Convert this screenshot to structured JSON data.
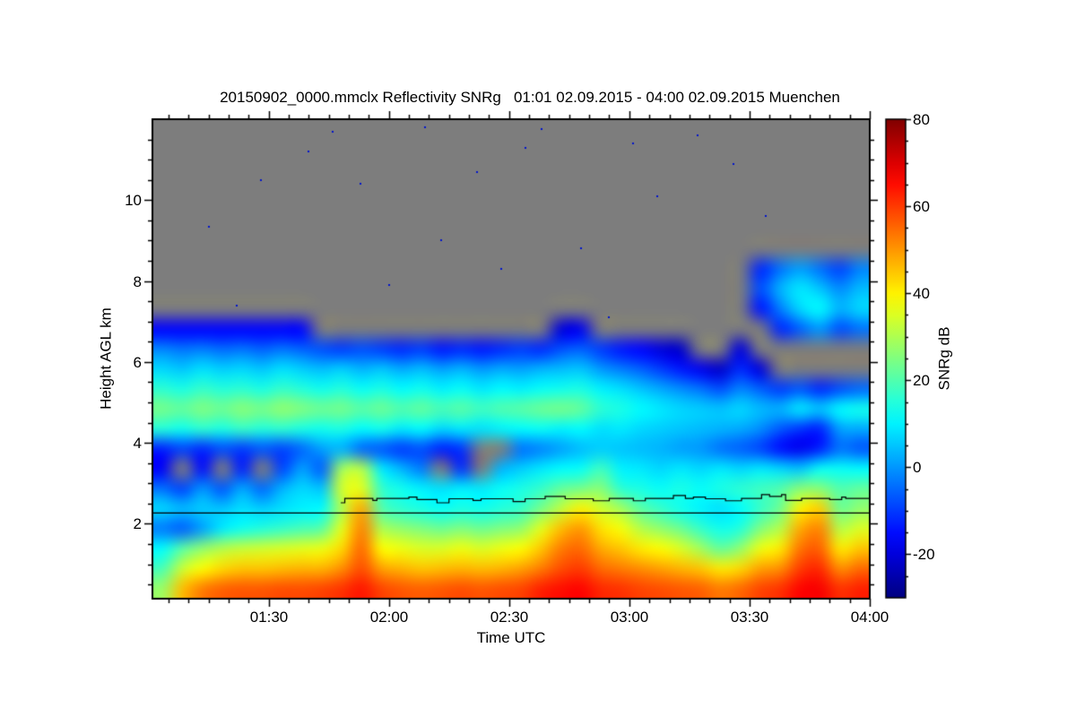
{
  "chart_data": {
    "type": "heatmap",
    "title": "20150902_0000.mmclx Reflectivity SNRg   01:01 02.09.2015 - 04:00 02.09.2015 Muenchen",
    "xlabel": "Time UTC",
    "ylabel": "Height AGL km",
    "colorbar_label": "SNRg dB",
    "colormap": "jet",
    "x_range_min": [
      61,
      240
    ],
    "x_ticks": [
      {
        "t": 90,
        "label": "01:30"
      },
      {
        "t": 120,
        "label": "02:00"
      },
      {
        "t": 150,
        "label": "02:30"
      },
      {
        "t": 180,
        "label": "03:00"
      },
      {
        "t": 210,
        "label": "03:30"
      },
      {
        "t": 240,
        "label": "04:00"
      }
    ],
    "x_minor_step_min": 5,
    "y_range_km": [
      0.15,
      12.0
    ],
    "y_ticks": [
      2,
      4,
      6,
      8,
      10
    ],
    "y_minor_step_km": 0.5,
    "value_range_db": [
      -30,
      80
    ],
    "cb_ticks": [
      80,
      60,
      40,
      20,
      0,
      -20
    ],
    "cb_minor_step_db": 5,
    "grid": {
      "cols": 36,
      "rows": 24,
      "row_top_km": 12.0,
      "row_bottom_km": 0.15,
      "values": [
        [
          null,
          null,
          null,
          null,
          null,
          null,
          null,
          null,
          null,
          null,
          null,
          null,
          null,
          null,
          null,
          null,
          null,
          null,
          null,
          null,
          null,
          null,
          null,
          null,
          null,
          null,
          null,
          null,
          null,
          null,
          null,
          null,
          null,
          null,
          null,
          null
        ],
        [
          null,
          null,
          null,
          null,
          null,
          null,
          null,
          null,
          null,
          null,
          null,
          null,
          null,
          null,
          null,
          null,
          null,
          null,
          null,
          null,
          null,
          null,
          null,
          null,
          null,
          null,
          null,
          null,
          null,
          null,
          null,
          null,
          null,
          null,
          null,
          null
        ],
        [
          null,
          null,
          null,
          null,
          null,
          null,
          null,
          null,
          null,
          null,
          null,
          null,
          null,
          null,
          null,
          null,
          null,
          null,
          null,
          null,
          null,
          null,
          null,
          null,
          null,
          null,
          null,
          null,
          null,
          null,
          null,
          null,
          null,
          null,
          null,
          null
        ],
        [
          null,
          null,
          null,
          null,
          null,
          null,
          null,
          null,
          null,
          null,
          null,
          null,
          null,
          null,
          null,
          null,
          null,
          null,
          null,
          null,
          null,
          null,
          null,
          null,
          null,
          null,
          null,
          null,
          null,
          null,
          null,
          null,
          null,
          null,
          null,
          null
        ],
        [
          null,
          null,
          null,
          null,
          null,
          null,
          null,
          null,
          null,
          null,
          null,
          null,
          null,
          null,
          null,
          null,
          null,
          null,
          null,
          null,
          null,
          null,
          null,
          null,
          null,
          null,
          null,
          null,
          null,
          null,
          null,
          null,
          null,
          null,
          null,
          null
        ],
        [
          null,
          null,
          null,
          null,
          null,
          null,
          null,
          null,
          null,
          null,
          null,
          null,
          null,
          null,
          null,
          null,
          null,
          null,
          null,
          null,
          null,
          null,
          null,
          null,
          null,
          null,
          null,
          null,
          null,
          null,
          null,
          null,
          null,
          null,
          null,
          null
        ],
        [
          null,
          null,
          null,
          null,
          null,
          null,
          null,
          null,
          null,
          null,
          null,
          null,
          null,
          null,
          null,
          null,
          null,
          null,
          null,
          null,
          null,
          null,
          null,
          null,
          null,
          null,
          null,
          null,
          null,
          null,
          null,
          null,
          null,
          null,
          null,
          null
        ],
        [
          null,
          null,
          null,
          null,
          null,
          null,
          null,
          null,
          null,
          null,
          null,
          null,
          null,
          null,
          null,
          null,
          null,
          null,
          null,
          null,
          null,
          null,
          null,
          null,
          null,
          null,
          null,
          null,
          null,
          null,
          -12,
          -4,
          1,
          -4,
          -9,
          -2
        ],
        [
          null,
          null,
          null,
          null,
          null,
          null,
          null,
          null,
          null,
          null,
          null,
          null,
          null,
          null,
          null,
          null,
          null,
          null,
          null,
          null,
          null,
          null,
          null,
          null,
          null,
          null,
          null,
          null,
          null,
          null,
          -8,
          3,
          9,
          5,
          -1,
          4
        ],
        [
          null,
          null,
          null,
          null,
          null,
          null,
          null,
          null,
          null,
          null,
          null,
          null,
          null,
          null,
          null,
          null,
          null,
          null,
          null,
          null,
          null,
          null,
          null,
          null,
          null,
          null,
          null,
          null,
          null,
          null,
          -14,
          -3,
          7,
          11,
          3,
          7
        ],
        [
          -16,
          -16,
          -16,
          -16,
          -16,
          -16,
          -16,
          -16,
          null,
          null,
          null,
          null,
          null,
          null,
          null,
          null,
          null,
          null,
          null,
          null,
          -20,
          -18,
          null,
          null,
          null,
          null,
          null,
          null,
          null,
          null,
          null,
          -12,
          -6,
          0,
          -8,
          -4
        ],
        [
          -2,
          -4,
          -3,
          -5,
          -4,
          -6,
          -4,
          -6,
          -8,
          -10,
          -8,
          -10,
          -12,
          -10,
          -14,
          -12,
          -14,
          -12,
          -10,
          -12,
          -8,
          -6,
          -10,
          -14,
          -16,
          -20,
          -22,
          null,
          null,
          -20,
          null,
          null,
          null,
          null,
          null,
          null
        ],
        [
          7,
          5,
          8,
          6,
          7,
          5,
          8,
          6,
          4,
          6,
          3,
          5,
          2,
          4,
          1,
          3,
          0,
          2,
          1,
          3,
          4,
          5,
          0,
          -3,
          -6,
          -10,
          -14,
          -18,
          -22,
          -12,
          -20,
          null,
          null,
          null,
          null,
          null
        ],
        [
          16,
          14,
          17,
          15,
          16,
          14,
          17,
          15,
          13,
          15,
          12,
          14,
          11,
          13,
          10,
          12,
          9,
          11,
          10,
          12,
          13,
          14,
          10,
          8,
          5,
          2,
          -1,
          -4,
          -8,
          -2,
          -6,
          -10,
          -7,
          -12,
          -8,
          -5
        ],
        [
          24,
          22,
          25,
          23,
          26,
          24,
          27,
          25,
          23,
          24,
          21,
          23,
          20,
          22,
          19,
          21,
          18,
          20,
          21,
          23,
          24,
          22,
          16,
          14,
          11,
          9,
          7,
          6,
          5,
          7,
          4,
          3,
          9,
          5,
          11,
          13
        ],
        [
          15,
          13,
          16,
          14,
          17,
          15,
          16,
          14,
          13,
          14,
          11,
          13,
          9,
          11,
          7,
          9,
          8,
          10,
          11,
          12,
          10,
          11,
          8,
          9,
          7,
          6,
          5,
          4,
          3,
          2,
          -1,
          -7,
          -11,
          -13,
          1,
          2
        ],
        [
          -13,
          -9,
          -12,
          -8,
          -10,
          -7,
          -9,
          -5,
          1,
          3,
          -5,
          -7,
          -10,
          -8,
          -13,
          -11,
          null,
          null,
          -4,
          -2,
          1,
          4,
          6,
          5,
          4,
          3,
          1,
          0,
          -4,
          -6,
          -9,
          -15,
          -18,
          -13,
          -4,
          -7
        ],
        [
          -17,
          null,
          -15,
          null,
          -13,
          null,
          -9,
          1,
          -6,
          29,
          31,
          9,
          3,
          -3,
          null,
          -11,
          null,
          3,
          6,
          9,
          11,
          12,
          18,
          10,
          9,
          7,
          9,
          7,
          9,
          7,
          9,
          7,
          5,
          12,
          12,
          11
        ],
        [
          -4,
          -9,
          0,
          -7,
          2,
          -5,
          3,
          7,
          5,
          34,
          36,
          17,
          13,
          10,
          8,
          10,
          9,
          12,
          14,
          17,
          22,
          24,
          26,
          16,
          14,
          12,
          14,
          12,
          14,
          16,
          18,
          20,
          26,
          26,
          20,
          22
        ],
        [
          7,
          4,
          6,
          5,
          8,
          6,
          8,
          10,
          11,
          30,
          48,
          20,
          16,
          14,
          12,
          14,
          13,
          15,
          17,
          24,
          32,
          40,
          34,
          29,
          21,
          17,
          13,
          10,
          8,
          11,
          17,
          23,
          40,
          44,
          23,
          27
        ],
        [
          -3,
          -6,
          1,
          9,
          13,
          15,
          17,
          19,
          21,
          36,
          52,
          30,
          27,
          25,
          23,
          25,
          23,
          25,
          27,
          36,
          46,
          50,
          42,
          38,
          31,
          27,
          23,
          17,
          13,
          15,
          25,
          31,
          48,
          52,
          31,
          35
        ],
        [
          11,
          21,
          27,
          31,
          33,
          34,
          35,
          36,
          37,
          43,
          55,
          39,
          37,
          35,
          35,
          37,
          35,
          37,
          39,
          45,
          53,
          55,
          48,
          45,
          41,
          39,
          35,
          29,
          22,
          27,
          37,
          41,
          54,
          56,
          41,
          45
        ],
        [
          19,
          33,
          39,
          43,
          45,
          45,
          46,
          47,
          47,
          51,
          58,
          49,
          47,
          45,
          46,
          47,
          46,
          47,
          49,
          53,
          58,
          60,
          55,
          53,
          51,
          49,
          47,
          45,
          41,
          43,
          49,
          51,
          60,
          62,
          51,
          55
        ],
        [
          28,
          46,
          53,
          56,
          57,
          57,
          58,
          58,
          59,
          61,
          64,
          59,
          57,
          56,
          57,
          58,
          57,
          58,
          59,
          63,
          65,
          66,
          62,
          61,
          59,
          58,
          57,
          56,
          53,
          55,
          59,
          61,
          66,
          67,
          61,
          63
        ]
      ]
    },
    "specks": [
      [
        75,
        9.35
      ],
      [
        82,
        7.4
      ],
      [
        88,
        10.5
      ],
      [
        100,
        11.2
      ],
      [
        106,
        11.7
      ],
      [
        113,
        10.4
      ],
      [
        120,
        7.9
      ],
      [
        129,
        11.8
      ],
      [
        133,
        9.0
      ],
      [
        142,
        10.7
      ],
      [
        148,
        8.3
      ],
      [
        154,
        11.3
      ],
      [
        158,
        11.75
      ],
      [
        168,
        8.8
      ],
      [
        175,
        7.1
      ],
      [
        181,
        11.4
      ],
      [
        187,
        10.1
      ],
      [
        197,
        11.6
      ],
      [
        206,
        10.9
      ],
      [
        214,
        9.6
      ]
    ],
    "boundary_lines": {
      "flat_line_km": 2.28,
      "stepped_line": [
        [
          108,
          2.52
        ],
        [
          109,
          2.63
        ],
        [
          115,
          2.63
        ],
        [
          116,
          2.58
        ],
        [
          117,
          2.63
        ],
        [
          124,
          2.63
        ],
        [
          125,
          2.66
        ],
        [
          127,
          2.6
        ],
        [
          131,
          2.6
        ],
        [
          132,
          2.52
        ],
        [
          134,
          2.52
        ],
        [
          135,
          2.62
        ],
        [
          140,
          2.62
        ],
        [
          141,
          2.58
        ],
        [
          143,
          2.62
        ],
        [
          150,
          2.62
        ],
        [
          151,
          2.55
        ],
        [
          153,
          2.55
        ],
        [
          154,
          2.62
        ],
        [
          158,
          2.62
        ],
        [
          159,
          2.68
        ],
        [
          163,
          2.68
        ],
        [
          164,
          2.62
        ],
        [
          170,
          2.62
        ],
        [
          171,
          2.57
        ],
        [
          174,
          2.57
        ],
        [
          175,
          2.63
        ],
        [
          180,
          2.63
        ],
        [
          181,
          2.57
        ],
        [
          183,
          2.57
        ],
        [
          184,
          2.63
        ],
        [
          190,
          2.63
        ],
        [
          191,
          2.7
        ],
        [
          193,
          2.7
        ],
        [
          194,
          2.63
        ],
        [
          196,
          2.66
        ],
        [
          199,
          2.62
        ],
        [
          203,
          2.62
        ],
        [
          204,
          2.57
        ],
        [
          207,
          2.57
        ],
        [
          208,
          2.63
        ],
        [
          212,
          2.63
        ],
        [
          213,
          2.72
        ],
        [
          215,
          2.68
        ],
        [
          218,
          2.72
        ],
        [
          219,
          2.58
        ],
        [
          222,
          2.58
        ],
        [
          223,
          2.63
        ],
        [
          229,
          2.63
        ],
        [
          230,
          2.6
        ],
        [
          232,
          2.6
        ],
        [
          233,
          2.66
        ],
        [
          234,
          2.63
        ],
        [
          240,
          2.63
        ]
      ]
    },
    "colors": {
      "nodata": "#7d7d7d",
      "background": "#ffffff",
      "frame": "#000000",
      "speck": "#0014cd"
    }
  }
}
